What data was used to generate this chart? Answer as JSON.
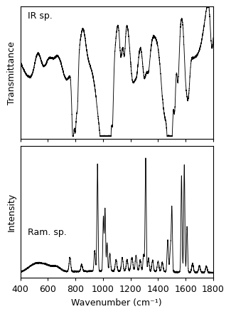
{
  "xmin": 400,
  "xmax": 1800,
  "xlabel": "Wavenumber (cm⁻¹)",
  "ir_label": "IR sp.",
  "raman_label": "Ram. sp.",
  "ir_ylabel": "Transmittance",
  "raman_ylabel": "Intensity",
  "line_color": "#000000",
  "background_color": "#ffffff",
  "label_fontsize": 9,
  "tick_fontsize": 9,
  "annotation_fontsize": 9
}
